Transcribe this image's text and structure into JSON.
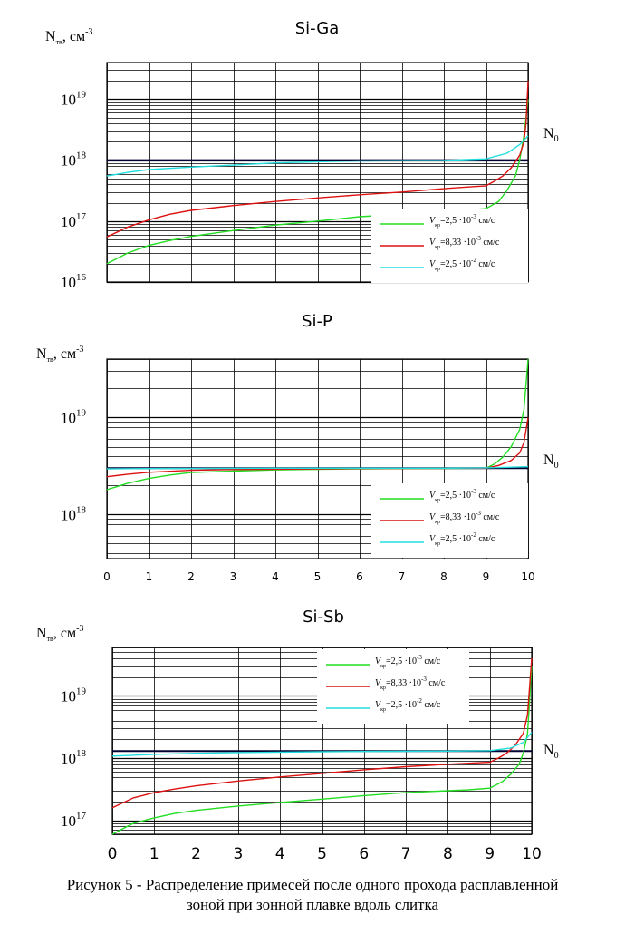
{
  "chart_data": [
    {
      "type": "line",
      "title": "Si-Ga",
      "ylabel_main": "N",
      "ylabel_sub": "тв",
      "ylabel_unit": ", см",
      "ylabel_exp": "-3",
      "yscale": "log",
      "ylim": [
        1e+16,
        4e+19
      ],
      "xlim": [
        0,
        10
      ],
      "show_xticks": false,
      "y_ticks": [
        {
          "base": "10",
          "exp": "16",
          "value": 1e+16
        },
        {
          "base": "10",
          "exp": "17",
          "value": 1e+17
        },
        {
          "base": "10",
          "exp": "18",
          "value": 1e+18
        },
        {
          "base": "10",
          "exp": "19",
          "value": 1e+19
        }
      ],
      "n0_label": "N",
      "n0_sub": "0",
      "n0_value": 1e+18,
      "legend": [
        {
          "v": "V",
          "sub": "кр",
          "text": "=2,5 ·10",
          "exp": "-3",
          "unit": " см/с",
          "color": "#22dd22"
        },
        {
          "v": "V",
          "sub": "кр",
          "text": "=8,33 ·10",
          "exp": "-3",
          "unit": " см/с",
          "color": "#dd1111"
        },
        {
          "v": "V",
          "sub": "кр",
          "text": "=2,5 ·10",
          "exp": "-2",
          "unit": " см/с",
          "color": "#22dddd"
        }
      ],
      "series": [
        {
          "name": "green",
          "color": "#22dd22",
          "x": [
            0,
            0.5,
            1,
            1.5,
            2,
            3,
            4,
            5,
            6,
            7,
            8,
            8.5,
            9,
            9.3,
            9.5,
            9.7,
            9.8,
            9.9,
            10
          ],
          "y": [
            2e+16,
            3e+16,
            4e+16,
            4.8e+16,
            5.6e+16,
            7e+16,
            8.6e+16,
            1e+17,
            1.18e+17,
            1.3e+17,
            1.45e+17,
            1.5e+17,
            1.6e+17,
            2.1e+17,
            3.2e+17,
            5.5e+17,
            1e+18,
            2.5e+18,
            1e+19
          ]
        },
        {
          "name": "red",
          "color": "#dd1111",
          "x": [
            0,
            0.5,
            1,
            1.5,
            2,
            3,
            4,
            5,
            6,
            7,
            8,
            8.5,
            9,
            9.2,
            9.4,
            9.6,
            9.8,
            9.9,
            9.95,
            10
          ],
          "y": [
            5.5e+16,
            8e+16,
            1.05e+17,
            1.3e+17,
            1.5e+17,
            1.8e+17,
            2.1e+17,
            2.4e+17,
            2.7e+17,
            3e+17,
            3.4e+17,
            3.6e+17,
            3.8e+17,
            4.5e+17,
            5.5e+17,
            7.5e+17,
            1.2e+18,
            2e+18,
            4e+18,
            2e+19
          ]
        },
        {
          "name": "cyan",
          "color": "#22dddd",
          "x": [
            0,
            0.5,
            1,
            2,
            3,
            4,
            5,
            6,
            7,
            8,
            9,
            9.5,
            9.8,
            10
          ],
          "y": [
            5.5e+17,
            6.3e+17,
            7e+17,
            7.7e+17,
            8.3e+17,
            9e+17,
            9.4e+17,
            9.7e+17,
            9.8e+17,
            9.9e+17,
            1.05e+18,
            1.3e+18,
            1.8e+18,
            2.5e+18
          ]
        }
      ]
    },
    {
      "type": "line",
      "title": "Si-P",
      "ylabel_main": "N",
      "ylabel_sub": "тв",
      "ylabel_unit": ", см",
      "ylabel_exp": "-3",
      "yscale": "log",
      "ylim": [
        3.5e+17,
        4e+19
      ],
      "xlim": [
        0,
        10
      ],
      "show_xticks": true,
      "x_ticks": [
        "0",
        "1",
        "2",
        "3",
        "4",
        "5",
        "6",
        "7",
        "8",
        "9",
        "10"
      ],
      "y_ticks": [
        {
          "base": "10",
          "exp": "18",
          "value": 1e+18
        },
        {
          "base": "10",
          "exp": "19",
          "value": 1e+19
        }
      ],
      "n0_label": "N",
      "n0_sub": "0",
      "n0_value": 3e+18,
      "legend": [
        {
          "v": "V",
          "sub": "кр",
          "text": "=2,5 ·10",
          "exp": "-3",
          "unit": " см/с",
          "color": "#22dd22"
        },
        {
          "v": "V",
          "sub": "кр",
          "text": "=8,33 ·10",
          "exp": "-3",
          "unit": " см/с",
          "color": "#dd1111"
        },
        {
          "v": "V",
          "sub": "кр",
          "text": "=2,5 ·10",
          "exp": "-2",
          "unit": " см/с",
          "color": "#22dddd"
        }
      ],
      "series": [
        {
          "name": "green",
          "color": "#22dd22",
          "x": [
            0,
            0.5,
            1,
            1.5,
            2,
            3,
            4,
            5,
            6,
            7,
            8,
            9,
            9.2,
            9.4,
            9.6,
            9.8,
            9.9,
            10
          ],
          "y": [
            1.8e+18,
            2.1e+18,
            2.35e+18,
            2.55e+18,
            2.7e+18,
            2.8e+18,
            2.88e+18,
            2.92e+18,
            2.95e+18,
            2.97e+18,
            2.98e+18,
            3e+18,
            3.3e+18,
            3.9e+18,
            5e+18,
            7.5e+18,
            1.2e+19,
            4e+19
          ]
        },
        {
          "name": "red",
          "color": "#dd1111",
          "x": [
            0,
            0.5,
            1,
            2,
            3,
            4,
            5,
            6,
            7,
            8,
            9,
            9.3,
            9.6,
            9.8,
            9.9,
            10
          ],
          "y": [
            2.45e+18,
            2.6e+18,
            2.72e+18,
            2.85e+18,
            2.9e+18,
            2.93e+18,
            2.95e+18,
            2.97e+18,
            2.98e+18,
            2.99e+18,
            3e+18,
            3.2e+18,
            3.6e+18,
            4.3e+18,
            5.5e+18,
            1e+19
          ]
        },
        {
          "name": "cyan",
          "color": "#22dddd",
          "x": [
            0,
            1,
            2,
            3,
            4,
            5,
            6,
            7,
            8,
            9,
            10
          ],
          "y": [
            2.95e+18,
            2.97e+18,
            2.98e+18,
            2.99e+18,
            3e+18,
            3e+18,
            3e+18,
            3e+18,
            3e+18,
            3.02e+18,
            3.1e+18
          ]
        }
      ]
    },
    {
      "type": "line",
      "title": "Si-Sb",
      "ylabel_main": "N",
      "ylabel_sub": "тв",
      "ylabel_unit": ", см",
      "ylabel_exp": "-3",
      "yscale": "log",
      "ylim": [
        6e+16,
        6e+19
      ],
      "xlim": [
        0,
        10
      ],
      "show_xticks": true,
      "x_ticks": [
        "0",
        "1",
        "2",
        "3",
        "4",
        "5",
        "6",
        "7",
        "8",
        "9",
        "10"
      ],
      "y_ticks": [
        {
          "base": "10",
          "exp": "17",
          "value": 1e+17
        },
        {
          "base": "10",
          "exp": "18",
          "value": 1e+18
        },
        {
          "base": "10",
          "exp": "19",
          "value": 1e+19
        }
      ],
      "n0_label": "N",
      "n0_sub": "0",
      "n0_value": 1.3e+18,
      "legend": [
        {
          "v": "V",
          "sub": "кр",
          "text": "=2,5 ·10",
          "exp": "-3",
          "unit": " см/с",
          "color": "#22dd22"
        },
        {
          "v": "V",
          "sub": "кр",
          "text": "=8,33 ·10",
          "exp": "-3",
          "unit": " см/с",
          "color": "#dd1111"
        },
        {
          "v": "V",
          "sub": "кр",
          "text": "=2,5 ·10",
          "exp": "-2",
          "unit": " см/с",
          "color": "#22dddd"
        }
      ],
      "series": [
        {
          "name": "green",
          "color": "#22dd22",
          "x": [
            0,
            0.5,
            1,
            1.5,
            2,
            3,
            4,
            5,
            6,
            7,
            8,
            8.5,
            9,
            9.3,
            9.5,
            9.7,
            9.8,
            9.9,
            10
          ],
          "y": [
            6e+16,
            9e+16,
            1.1e+17,
            1.3e+17,
            1.45e+17,
            1.7e+17,
            1.95e+17,
            2.2e+17,
            2.5e+17,
            2.8e+17,
            3e+17,
            3.1e+17,
            3.3e+17,
            4.2e+17,
            5.5e+17,
            8e+17,
            1.2e+18,
            2.5e+18,
            3e+19
          ]
        },
        {
          "name": "red",
          "color": "#dd1111",
          "x": [
            0,
            0.5,
            1,
            1.5,
            2,
            3,
            4,
            5,
            6,
            7,
            8,
            8.5,
            9,
            9.2,
            9.4,
            9.6,
            9.8,
            9.9,
            10
          ],
          "y": [
            1.6e+17,
            2.3e+17,
            2.8e+17,
            3.2e+17,
            3.6e+17,
            4.3e+17,
            5e+17,
            5.7e+17,
            6.5e+17,
            7.3e+17,
            8e+17,
            8.3e+17,
            8.6e+17,
            1e+18,
            1.2e+18,
            1.6e+18,
            2.5e+18,
            5e+18,
            4e+19
          ]
        },
        {
          "name": "cyan",
          "color": "#22dddd",
          "x": [
            0,
            1,
            2,
            3,
            4,
            5,
            6,
            7,
            8,
            9,
            9.5,
            9.8,
            10
          ],
          "y": [
            1.08e+18,
            1.15e+18,
            1.2e+18,
            1.23e+18,
            1.25e+18,
            1.27e+18,
            1.28e+18,
            1.29e+18,
            1.3e+18,
            1.32e+18,
            1.45e+18,
            1.8e+18,
            2.6e+18
          ]
        }
      ]
    }
  ],
  "caption": {
    "line1": "Рисунок 5 - Распределение примесей после одного прохода расплавленной",
    "line2": "зоной при зонной плавке вдоль слитка"
  }
}
